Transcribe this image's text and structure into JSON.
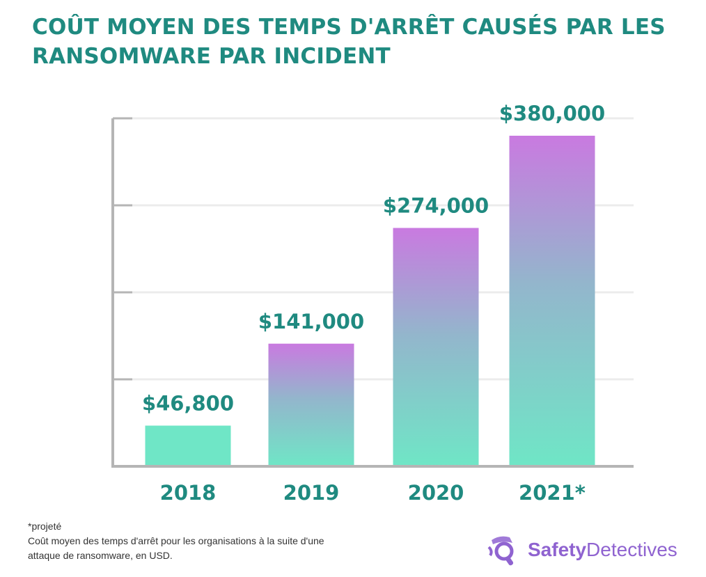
{
  "chart_data": {
    "type": "bar",
    "title": "COÛT MOYEN DES TEMPS D'ARRÊT CAUSÉS PAR LES RANSOMWARE PAR INCIDENT",
    "categories": [
      "2018",
      "2019",
      "2020",
      "2021*"
    ],
    "values": [
      46800,
      141000,
      274000,
      380000
    ],
    "data_labels": [
      "$46,800",
      "$141,000",
      "$274,000",
      "$380,000"
    ],
    "xlabel": "",
    "ylabel": "",
    "ylim": [
      0,
      400000
    ],
    "yticks": [
      0,
      100000,
      200000,
      300000,
      400000
    ],
    "grid": true,
    "colors": {
      "text": "#1f8a80",
      "bar_bottom": "#6fe6c6",
      "bar_top": "#c97ae0",
      "axis": "#b5b5b5",
      "grid": "#ececec"
    }
  },
  "footnote": {
    "projected": "*projeté",
    "line1": "Coût moyen des temps d'arrêt pour les organisations à la suite d'une",
    "line2": "attaque de ransomware, en USD."
  },
  "logo": {
    "brand_bold": "Safety",
    "brand_regular": "Detectives"
  }
}
